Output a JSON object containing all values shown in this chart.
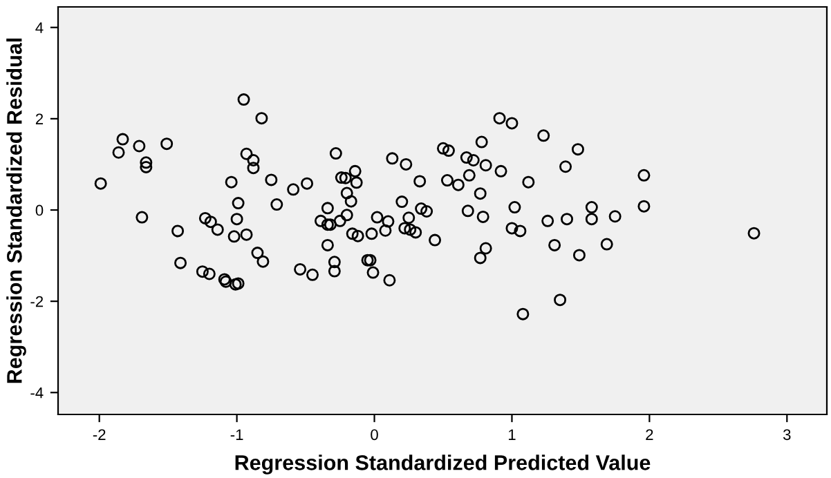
{
  "chart_data": {
    "type": "scatter",
    "xlabel": "Regression Standardized Predicted Value",
    "ylabel": "Regression Standardized Residual",
    "x": [
      -0.95,
      -0.82,
      -1.83,
      -1.86,
      -1.71,
      -1.51,
      -1.66,
      -1.66,
      -1.99,
      -0.93,
      -0.88,
      -0.88,
      -1.04,
      -0.75,
      -0.59,
      -0.49,
      -0.99,
      -0.71,
      -1.69,
      -1.43,
      -1.23,
      -1.19,
      -1.14,
      -1.0,
      -1.02,
      -0.93,
      -0.85,
      -0.81,
      -1.41,
      -1.25,
      -1.2,
      -1.09,
      -1.08,
      -1.01,
      -0.99,
      -0.54,
      -0.45,
      -0.39,
      -0.34,
      -0.34,
      0.91,
      1.0,
      1.23,
      -0.28,
      0.13,
      0.23,
      0.5,
      0.54,
      0.67,
      0.72,
      0.78,
      0.81,
      0.92,
      -0.14,
      -0.24,
      -0.21,
      -0.13,
      0.33,
      0.53,
      0.61,
      0.69,
      1.12,
      -0.2,
      -0.17,
      0.2,
      0.34,
      0.38,
      0.77,
      1.02,
      0.68,
      0.79,
      -0.2,
      -0.34,
      -0.32,
      -0.25,
      0.02,
      0.1,
      0.25,
      0.08,
      -0.02,
      -0.16,
      -0.12,
      0.22,
      0.26,
      0.3,
      0.44,
      1.0,
      1.06,
      1.26,
      0.81,
      0.77,
      -0.29,
      -0.29,
      -0.05,
      -0.03,
      -0.01,
      0.11,
      1.08,
      1.48,
      1.39,
      1.96,
      1.58,
      1.96,
      1.4,
      1.58,
      1.75,
      1.31,
      1.49,
      1.69,
      2.76,
      1.35
    ],
    "values": [
      2.42,
      2.01,
      1.55,
      1.26,
      1.4,
      1.45,
      1.04,
      0.94,
      0.58,
      1.23,
      1.09,
      0.92,
      0.61,
      0.66,
      0.45,
      0.58,
      0.15,
      0.12,
      -0.16,
      -0.46,
      -0.18,
      -0.26,
      -0.43,
      -0.2,
      -0.58,
      -0.54,
      -0.94,
      -1.13,
      -1.16,
      -1.35,
      -1.4,
      -1.52,
      -1.57,
      -1.63,
      -1.61,
      -1.3,
      -1.42,
      -0.24,
      0.04,
      -0.77,
      2.01,
      1.9,
      1.63,
      1.24,
      1.13,
      1.0,
      1.35,
      1.3,
      1.15,
      1.09,
      1.49,
      0.98,
      0.85,
      0.85,
      0.71,
      0.7,
      0.6,
      0.63,
      0.65,
      0.55,
      0.76,
      0.61,
      0.37,
      0.19,
      0.18,
      0.03,
      -0.03,
      0.36,
      0.06,
      -0.02,
      -0.15,
      -0.11,
      -0.32,
      -0.32,
      -0.24,
      -0.16,
      -0.25,
      -0.17,
      -0.45,
      -0.52,
      -0.52,
      -0.57,
      -0.4,
      -0.43,
      -0.49,
      -0.66,
      -0.4,
      -0.46,
      -0.24,
      -0.84,
      -1.05,
      -1.14,
      -1.34,
      -1.1,
      -1.1,
      -1.37,
      -1.54,
      -2.28,
      1.33,
      0.95,
      0.76,
      0.06,
      0.08,
      -0.2,
      -0.2,
      -0.14,
      -0.77,
      -0.99,
      -0.75,
      -0.51,
      -1.97
    ],
    "color": "#000000",
    "marker": "circle",
    "xlim": [
      -2.3,
      3.29
    ],
    "ylim": [
      -4.48,
      4.45
    ],
    "xticks": [
      -2,
      -1,
      0,
      1,
      2,
      3
    ],
    "yticks": [
      -4,
      -2,
      0,
      2,
      4
    ],
    "grid": false,
    "legend": false
  }
}
